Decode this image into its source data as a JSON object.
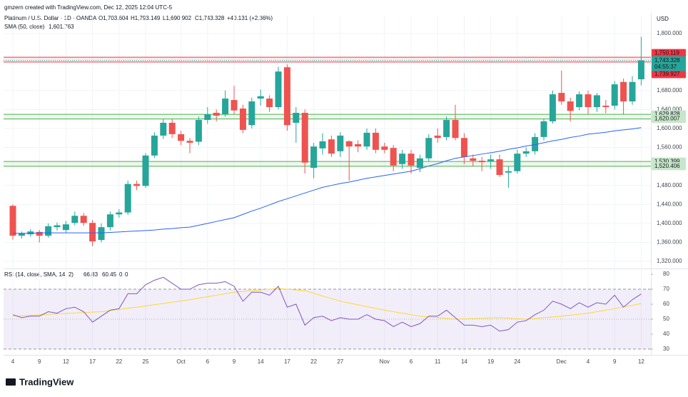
{
  "chart_data": {
    "type": "candlestick",
    "credit": "gmzern created with TradingView.com, Dec 12, 2025 12:04 UTC-5",
    "header": {
      "symbol": "Platinum / U.S. Dollar · 1D · OANDA",
      "open": "O1,703.604",
      "high": "H1,793.149",
      "low": "L1,690.902",
      "close": "C1,743.328",
      "change": "+40.131 (+2.36%)"
    },
    "currency": "USD",
    "sma_legend": {
      "name": "SMA (50, close)",
      "value": "1,601.763"
    },
    "rsi_legend": {
      "name": "RSI (14, close, SMA, 14, 2)",
      "values": [
        "66.83",
        "60.45",
        "0",
        "0"
      ]
    },
    "logo": "TradingView",
    "categories": [
      "4",
      null,
      null,
      "9",
      null,
      null,
      "12",
      null,
      null,
      "17",
      null,
      null,
      "22",
      null,
      null,
      "25",
      null,
      null,
      null,
      "Oct",
      null,
      null,
      "6",
      null,
      null,
      "9",
      null,
      null,
      "14",
      null,
      null,
      "17",
      null,
      null,
      "22",
      null,
      null,
      "27",
      null,
      null,
      null,
      null,
      "Nov",
      null,
      null,
      "6",
      null,
      null,
      "11",
      null,
      null,
      "14",
      null,
      null,
      "19",
      null,
      null,
      "24",
      null,
      null,
      null,
      null,
      "Dec",
      null,
      null,
      "4",
      null,
      null,
      "9",
      null,
      null,
      "12"
    ],
    "open": [
      1437,
      1374,
      1377,
      1382,
      1374,
      1392,
      1386,
      1401,
      1416,
      1401,
      1365,
      1392,
      1419,
      1423,
      1483,
      1479,
      1543,
      1585,
      1612,
      1588,
      1574,
      1572,
      1618,
      1633,
      1630,
      1660,
      1642,
      1607,
      1663,
      1663,
      1645,
      1729,
      1612,
      1633,
      1517,
      1558,
      1577,
      1552,
      1573,
      1567,
      1562,
      1591,
      1562,
      1559,
      1525,
      1547,
      1517,
      1537,
      1585,
      1582,
      1618,
      1580,
      1537,
      1532,
      1531,
      1535,
      1507,
      1510,
      1547,
      1552,
      1582,
      1615,
      1675,
      1657,
      1645,
      1672,
      1645,
      1648,
      1648,
      1698,
      1657,
      1703.604
    ],
    "high": [
      1440,
      1383,
      1388,
      1386,
      1400,
      1402,
      1405,
      1425,
      1422,
      1407,
      1400,
      1425,
      1430,
      1490,
      1490,
      1548,
      1592,
      1620,
      1620,
      1595,
      1580,
      1625,
      1645,
      1640,
      1680,
      1690,
      1650,
      1665,
      1682,
      1670,
      1730,
      1735,
      1645,
      1640,
      1570,
      1590,
      1585,
      1592,
      1575,
      1575,
      1600,
      1600,
      1570,
      1565,
      1555,
      1555,
      1545,
      1588,
      1600,
      1625,
      1650,
      1590,
      1545,
      1540,
      1545,
      1545,
      1520,
      1555,
      1560,
      1590,
      1620,
      1680,
      1722,
      1665,
      1678,
      1680,
      1675,
      1660,
      1700,
      1705,
      1710,
      1793.149
    ],
    "low": [
      1366,
      1368,
      1372,
      1360,
      1370,
      1385,
      1380,
      1396,
      1395,
      1352,
      1360,
      1385,
      1412,
      1418,
      1470,
      1475,
      1538,
      1578,
      1580,
      1565,
      1548,
      1565,
      1610,
      1615,
      1625,
      1630,
      1590,
      1600,
      1648,
      1635,
      1640,
      1595,
      1570,
      1505,
      1495,
      1545,
      1540,
      1540,
      1490,
      1550,
      1555,
      1548,
      1548,
      1510,
      1515,
      1505,
      1508,
      1530,
      1570,
      1575,
      1575,
      1525,
      1520,
      1510,
      1515,
      1498,
      1475,
      1505,
      1540,
      1545,
      1575,
      1610,
      1650,
      1615,
      1638,
      1630,
      1635,
      1632,
      1640,
      1630,
      1650,
      1690.902
    ],
    "close": [
      1374,
      1379,
      1383,
      1374,
      1394,
      1396,
      1398,
      1416,
      1401,
      1362,
      1392,
      1419,
      1423,
      1483,
      1479,
      1543,
      1585,
      1612,
      1588,
      1574,
      1570,
      1618,
      1630,
      1627,
      1663,
      1638,
      1597,
      1657,
      1668,
      1645,
      1720,
      1607,
      1633,
      1528,
      1562,
      1573,
      1547,
      1585,
      1562,
      1562,
      1591,
      1555,
      1555,
      1522,
      1547,
      1522,
      1537,
      1580,
      1580,
      1618,
      1580,
      1540,
      1532,
      1529,
      1535,
      1502,
      1510,
      1547,
      1552,
      1582,
      1615,
      1672,
      1657,
      1637,
      1672,
      1645,
      1670,
      1645,
      1693,
      1657,
      1698,
      1743.328
    ],
    "colors": {
      "up": "#26a69a",
      "down": "#ef5350"
    },
    "sma": {
      "color": "#2962ff",
      "values": [
        1379,
        1379,
        1379,
        1380,
        1380,
        1380,
        1380,
        1380,
        1380,
        1380,
        1380,
        1381,
        1382,
        1383,
        1384,
        1385,
        1386,
        1388,
        1389,
        1391,
        1392,
        1396,
        1400,
        1404,
        1408,
        1412,
        1419,
        1426,
        1432,
        1439,
        1446,
        1452,
        1458,
        1464,
        1470,
        1476,
        1480,
        1484,
        1487,
        1491,
        1495,
        1498,
        1501,
        1504,
        1507,
        1510,
        1515,
        1521,
        1526,
        1532,
        1537,
        1540,
        1543,
        1546,
        1549,
        1552,
        1556,
        1559,
        1563,
        1566,
        1570,
        1574,
        1577,
        1581,
        1584,
        1588,
        1590,
        1592,
        1595,
        1597,
        1599,
        1601.763
      ]
    },
    "ylim": [
      1306.5,
      1837.6
    ],
    "yticks": [
      {
        "value": 1800,
        "label": "1,800.000"
      },
      {
        "value": 1680,
        "label": "1,680.000"
      },
      {
        "value": 1640,
        "label": "1,640.000"
      },
      {
        "value": 1600,
        "label": "1,600.000"
      },
      {
        "value": 1560,
        "label": "1,560.000"
      },
      {
        "value": 1480,
        "label": "1,480.000"
      },
      {
        "value": 1440,
        "label": "1,440.000"
      },
      {
        "value": 1400,
        "label": "1,400.000"
      },
      {
        "value": 1360,
        "label": "1,360.000"
      },
      {
        "value": 1320,
        "label": "1,320.000"
      }
    ],
    "zones": [
      {
        "color": "#f23645",
        "levels": [
          {
            "value": 1750.119,
            "label": "1,750.119"
          },
          {
            "value": 1739.927,
            "label": "1,739.927"
          }
        ]
      },
      {
        "color": "#4caf50",
        "levels": [
          {
            "value": 1629.828,
            "label": "1,629.828"
          },
          {
            "value": 1620.007,
            "label": "1,620.007"
          }
        ]
      },
      {
        "color": "#4caf50",
        "levels": [
          {
            "value": 1530.399,
            "label": "1,530.399"
          },
          {
            "value": 1520.406,
            "label": "1,520.406"
          }
        ]
      }
    ],
    "last_price": {
      "value": 1743.328,
      "label": "1,743.328",
      "countdown": "04:55:37"
    },
    "rsi": {
      "color": "#7e57c2",
      "sma_color": "#fdd835",
      "values": [
        53,
        51,
        52,
        52,
        55,
        54,
        57,
        58,
        55,
        48,
        52,
        56,
        57,
        67,
        67,
        73,
        76,
        78,
        74,
        70,
        70,
        73,
        74,
        74,
        75,
        72,
        62,
        68,
        68,
        66,
        72,
        58,
        60,
        46,
        51,
        52,
        49,
        51,
        50,
        50,
        53,
        50,
        49,
        45,
        48,
        45,
        47,
        52,
        52,
        56,
        51,
        46,
        46,
        45,
        46,
        42,
        43,
        48,
        49,
        53,
        56,
        62,
        60,
        57,
        61,
        58,
        61,
        60,
        66,
        58,
        63,
        66.83
      ],
      "sma": [
        52,
        52.3,
        52.6,
        52.9,
        53.2,
        53.5,
        53.8,
        54.1,
        54.4,
        54.7,
        55,
        55.8,
        56.5,
        57.3,
        58,
        58.8,
        59.7,
        60.5,
        61.3,
        62.2,
        63,
        64,
        65,
        66,
        67,
        68,
        68.5,
        69,
        69.5,
        70,
        70.5,
        70,
        69.5,
        69,
        67.3,
        65.5,
        63.8,
        62,
        60.8,
        59.6,
        58.4,
        57.2,
        56,
        55,
        54,
        53,
        52,
        51.5,
        51,
        50.5,
        50,
        50.2,
        50.4,
        50.6,
        50.8,
        51,
        50.7,
        50.3,
        50,
        50.5,
        51,
        51.5,
        52,
        52.7,
        53.3,
        54,
        55,
        56,
        57,
        58.2,
        59.3,
        60.45
      ],
      "ylim": [
        27.1,
        82.9
      ],
      "yticks": [
        80,
        70,
        60,
        50,
        40,
        30
      ],
      "band": [
        30,
        70
      ],
      "mid": 50
    }
  }
}
